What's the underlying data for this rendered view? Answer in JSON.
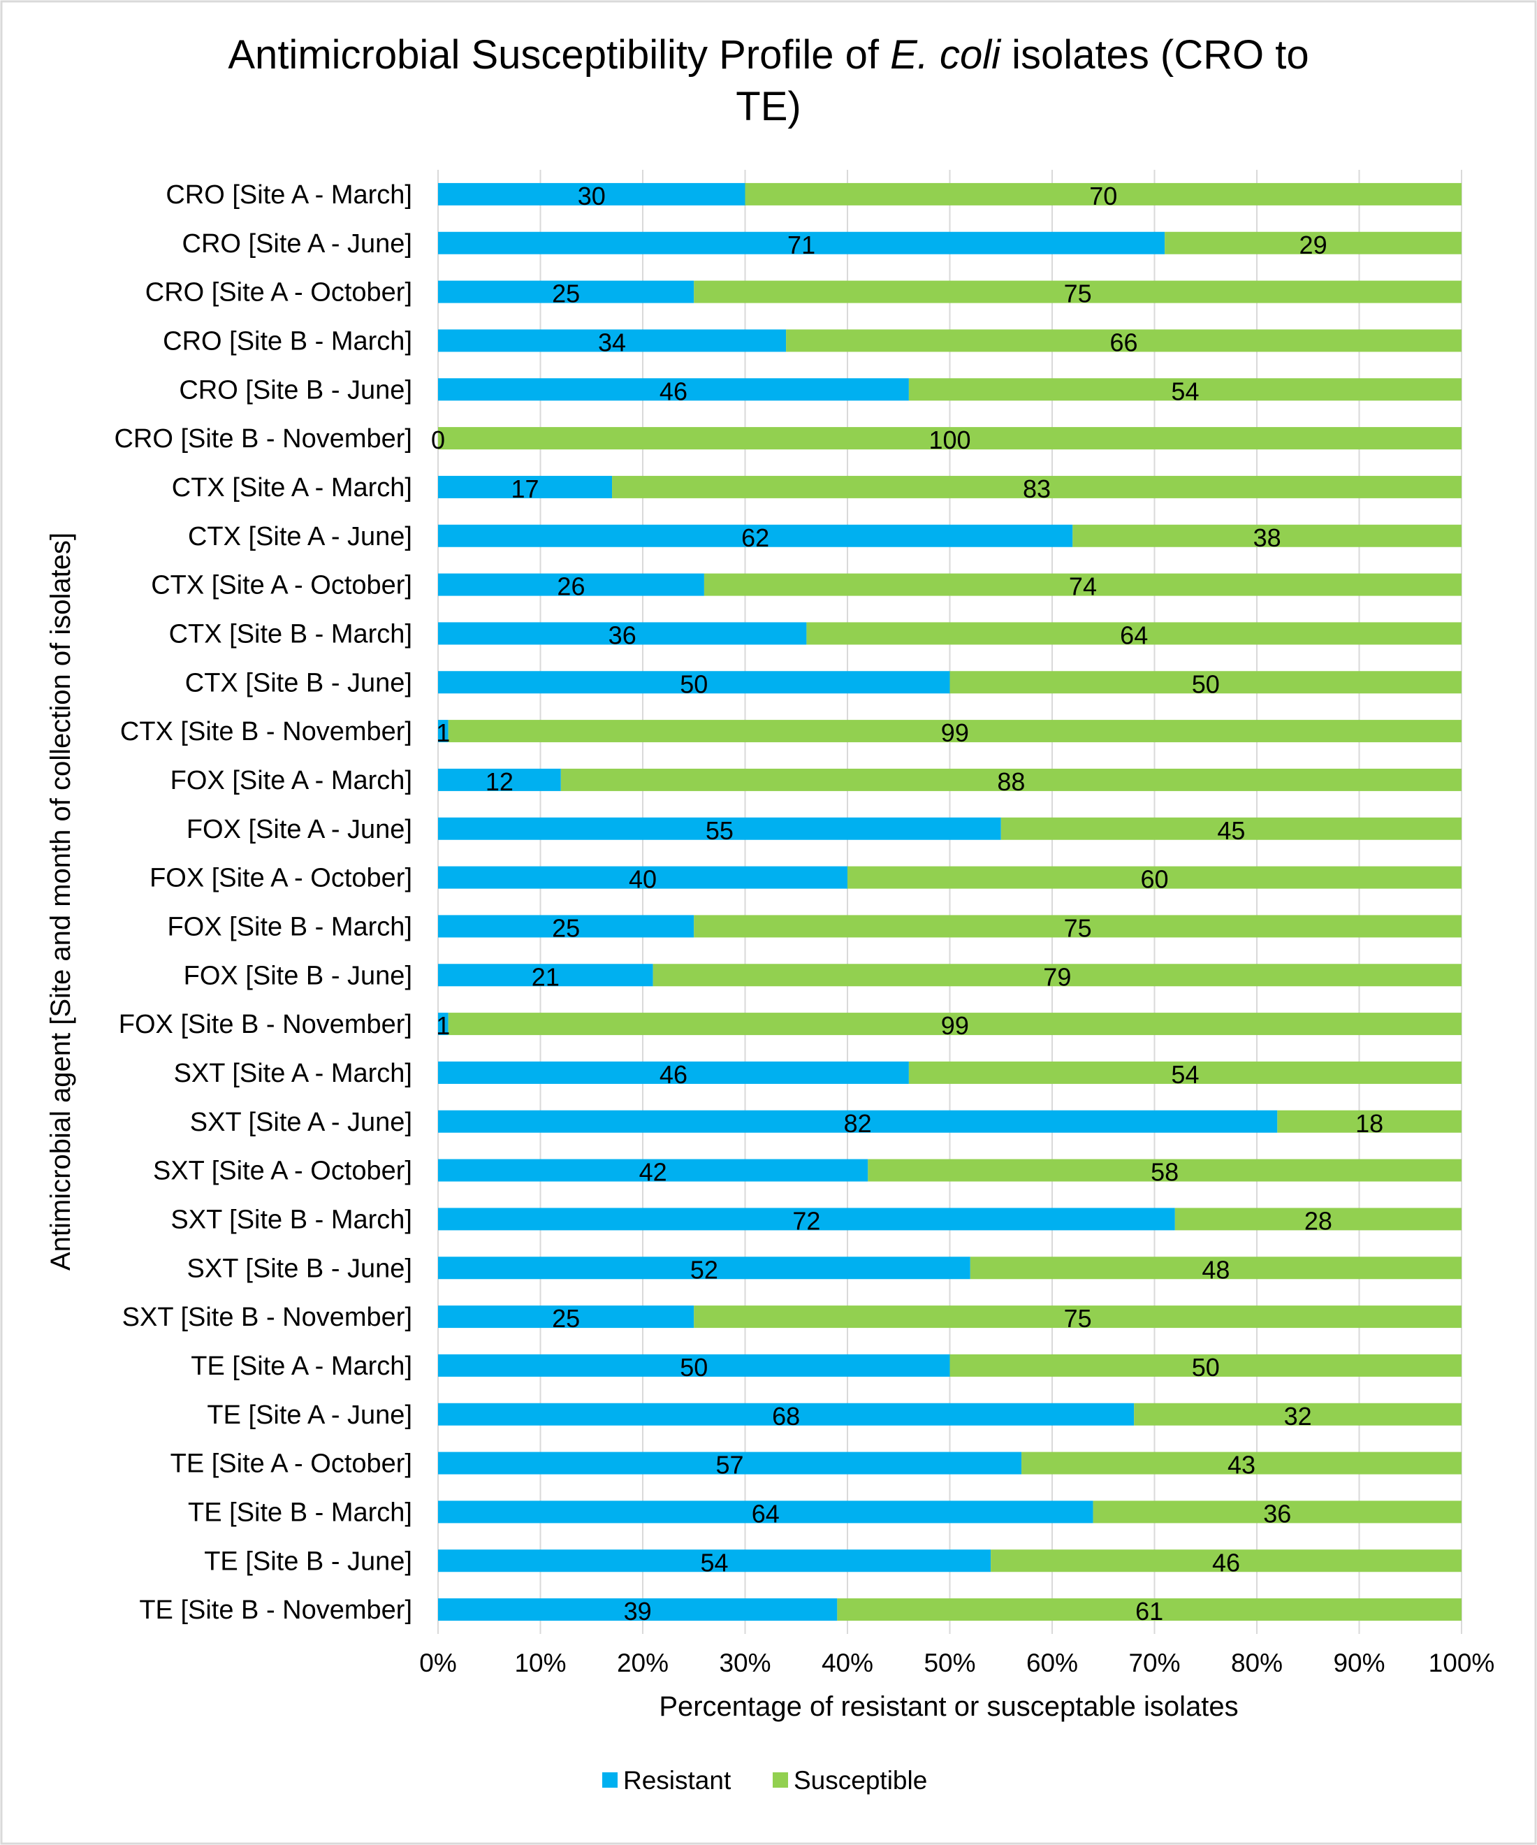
{
  "chart_data": {
    "type": "bar",
    "orientation": "horizontal",
    "stacked": "percent",
    "title": "Antimicrobial Susceptibility Profile of E. coli isolates (CRO to TE)",
    "title_parts": [
      {
        "text": "Antimicrobial Susceptibility Profile of ",
        "italic": false
      },
      {
        "text": "E. coli",
        "italic": true
      },
      {
        "text": " isolates (CRO to",
        "italic": false
      },
      {
        "text": "TE)",
        "italic": false
      }
    ],
    "xlabel": "Percentage of resistant or susceptable isolates",
    "ylabel": "Antimicrobial agent [Site and month of collection of isolates]",
    "xlim": [
      0,
      100
    ],
    "xticks": [
      "0%",
      "10%",
      "20%",
      "30%",
      "40%",
      "50%",
      "60%",
      "70%",
      "80%",
      "90%",
      "100%"
    ],
    "grid": true,
    "legend_position": "bottom",
    "categories": [
      "CRO [Site A - March]",
      "CRO [Site A - June]",
      "CRO [Site A - October]",
      "CRO [Site B - March]",
      "CRO [Site B - June]",
      "CRO [Site B - November]",
      "CTX [Site A - March]",
      "CTX [Site A - June]",
      "CTX [Site A - October]",
      "CTX [Site B - March]",
      "CTX [Site B - June]",
      "CTX [Site B - November]",
      "FOX [Site A - March]",
      "FOX [Site A - June]",
      "FOX [Site A - October]",
      "FOX [Site B - March]",
      "FOX [Site B - June]",
      "FOX [Site B - November]",
      "SXT [Site A - March]",
      "SXT [Site A - June]",
      "SXT [Site A - October]",
      "SXT [Site B - March]",
      "SXT [Site B - June]",
      "SXT [Site B - November]",
      "TE [Site A - March]",
      "TE [Site A - June]",
      "TE [Site A - October]",
      "TE [Site B - March]",
      "TE [Site B - June]",
      "TE [Site B - November]"
    ],
    "series": [
      {
        "name": "Resistant",
        "color": "#00B0F0",
        "values": [
          30,
          71,
          25,
          34,
          46,
          0,
          17,
          62,
          26,
          36,
          50,
          1,
          12,
          55,
          40,
          25,
          21,
          1,
          46,
          82,
          42,
          72,
          52,
          25,
          50,
          68,
          57,
          64,
          54,
          39
        ]
      },
      {
        "name": "Susceptible",
        "color": "#92D050",
        "values": [
          70,
          29,
          75,
          66,
          54,
          100,
          83,
          38,
          74,
          64,
          50,
          99,
          88,
          45,
          60,
          75,
          79,
          99,
          54,
          18,
          58,
          28,
          48,
          75,
          50,
          32,
          43,
          36,
          46,
          61
        ]
      }
    ]
  }
}
